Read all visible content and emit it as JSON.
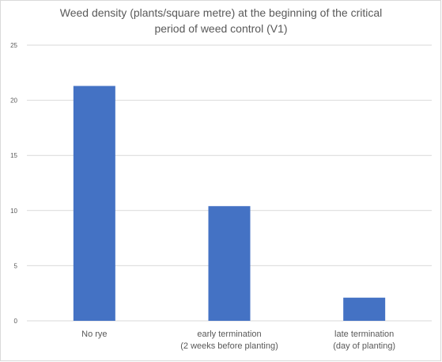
{
  "chart_data": {
    "type": "bar",
    "title": "Weed density (plants/square metre) at the beginning of the critical\nperiod of weed control (V1)",
    "xlabel": "",
    "ylabel": "",
    "categories": [
      [
        "No rye"
      ],
      [
        "early termination",
        "(2 weeks before planting)"
      ],
      [
        "late termination",
        "(day of planting)"
      ]
    ],
    "values": [
      21.3,
      10.4,
      2.1
    ],
    "ylim": [
      0,
      25
    ],
    "yticks": [
      0,
      5,
      10,
      15,
      20,
      25
    ],
    "grid": true,
    "legend": "none",
    "bar_color": "#4472c4",
    "grid_color": "#d9d9d9",
    "text_color": "#595959"
  }
}
